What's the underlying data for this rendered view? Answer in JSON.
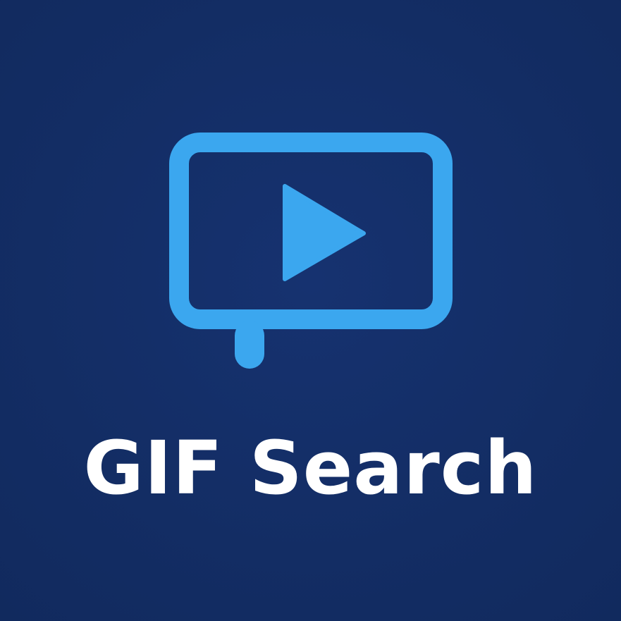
{
  "app": {
    "name": "GIF Search",
    "icon": "video-speech-bubble-icon"
  },
  "colors": {
    "background": "#132d64",
    "accent": "#3ba7ef",
    "text": "#ffffff"
  }
}
